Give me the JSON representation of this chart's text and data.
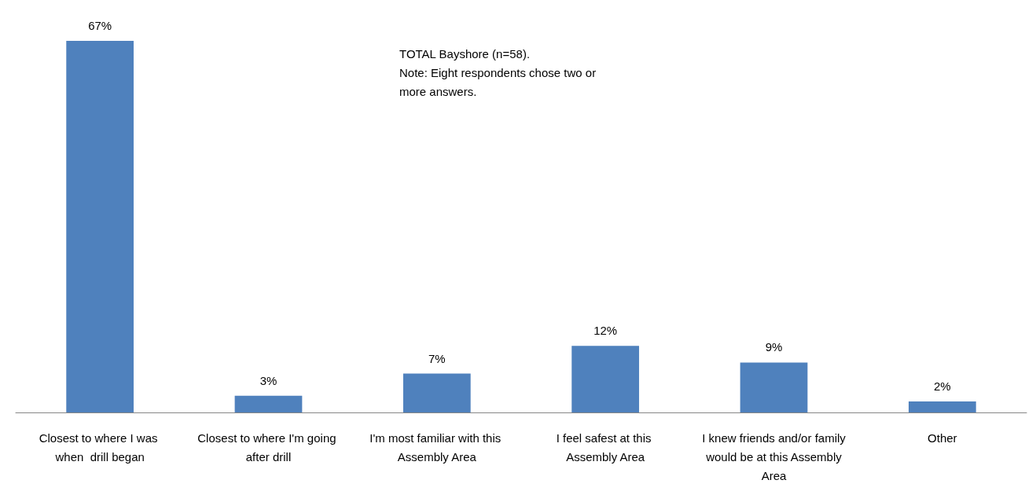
{
  "chart_data": {
    "type": "bar",
    "categories": [
      "Closest to where I was when  drill began",
      "Closest to where I'm going after drill",
      "I'm most familiar with this Assembly Area",
      "I feel safest at this Assembly Area",
      "I knew friends and/or family would be at this Assembly Area",
      "Other"
    ],
    "values": [
      67,
      3,
      7,
      12,
      9,
      2
    ],
    "value_labels": [
      "67%",
      "3%",
      "7%",
      "12%",
      "9%",
      "2%"
    ],
    "color": "#4f81bd",
    "annotations": [
      "TOTAL Bayshore (n=58).",
      "Note: Eight respondents chose two or more answers."
    ],
    "grid": false
  }
}
